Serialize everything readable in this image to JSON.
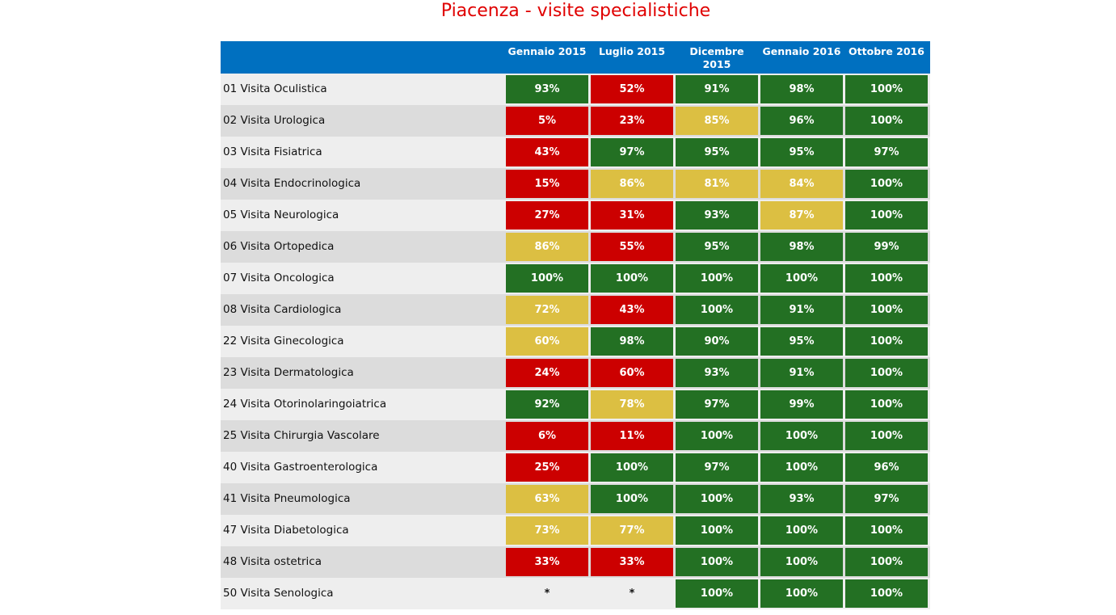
{
  "chart_data": {
    "type": "table",
    "title": "Piacenza - visite specialistiche",
    "columns": [
      "Gennaio 2015",
      "Luglio 2015",
      "Dicembre 2015",
      "Gennaio 2016",
      "Ottobre 2016"
    ],
    "rows": [
      {
        "label": "01 Visita Oculistica",
        "values": [
          "93%",
          "52%",
          "91%",
          "98%",
          "100%"
        ],
        "status": [
          "green",
          "red",
          "green",
          "green",
          "green"
        ]
      },
      {
        "label": "02 Visita Urologica",
        "values": [
          "5%",
          "23%",
          "85%",
          "96%",
          "100%"
        ],
        "status": [
          "red",
          "red",
          "yellow",
          "green",
          "green"
        ]
      },
      {
        "label": "03 Visita Fisiatrica",
        "values": [
          "43%",
          "97%",
          "95%",
          "95%",
          "97%"
        ],
        "status": [
          "red",
          "green",
          "green",
          "green",
          "green"
        ]
      },
      {
        "label": "04 Visita Endocrinologica",
        "values": [
          "15%",
          "86%",
          "81%",
          "84%",
          "100%"
        ],
        "status": [
          "red",
          "yellow",
          "yellow",
          "yellow",
          "green"
        ]
      },
      {
        "label": "05 Visita Neurologica",
        "values": [
          "27%",
          "31%",
          "93%",
          "87%",
          "100%"
        ],
        "status": [
          "red",
          "red",
          "green",
          "yellow",
          "green"
        ]
      },
      {
        "label": "06 Visita Ortopedica",
        "values": [
          "86%",
          "55%",
          "95%",
          "98%",
          "99%"
        ],
        "status": [
          "yellow",
          "red",
          "green",
          "green",
          "green"
        ]
      },
      {
        "label": "07 Visita Oncologica",
        "values": [
          "100%",
          "100%",
          "100%",
          "100%",
          "100%"
        ],
        "status": [
          "green",
          "green",
          "green",
          "green",
          "green"
        ]
      },
      {
        "label": "08 Visita Cardiologica",
        "values": [
          "72%",
          "43%",
          "100%",
          "91%",
          "100%"
        ],
        "status": [
          "yellow",
          "red",
          "green",
          "green",
          "green"
        ]
      },
      {
        "label": "22 Visita Ginecologica",
        "values": [
          "60%",
          "98%",
          "90%",
          "95%",
          "100%"
        ],
        "status": [
          "yellow",
          "green",
          "green",
          "green",
          "green"
        ]
      },
      {
        "label": "23 Visita Dermatologica",
        "values": [
          "24%",
          "60%",
          "93%",
          "91%",
          "100%"
        ],
        "status": [
          "red",
          "red",
          "green",
          "green",
          "green"
        ]
      },
      {
        "label": "24 Visita Otorinolaringoiatrica",
        "values": [
          "92%",
          "78%",
          "97%",
          "99%",
          "100%"
        ],
        "status": [
          "green",
          "yellow",
          "green",
          "green",
          "green"
        ]
      },
      {
        "label": "25 Visita Chirurgia Vascolare",
        "values": [
          "6%",
          "11%",
          "100%",
          "100%",
          "100%"
        ],
        "status": [
          "red",
          "red",
          "green",
          "green",
          "green"
        ]
      },
      {
        "label": "40 Visita Gastroenterologica",
        "values": [
          "25%",
          "100%",
          "97%",
          "100%",
          "96%"
        ],
        "status": [
          "red",
          "green",
          "green",
          "green",
          "green"
        ]
      },
      {
        "label": "41 Visita Pneumologica",
        "values": [
          "63%",
          "100%",
          "100%",
          "93%",
          "97%"
        ],
        "status": [
          "yellow",
          "green",
          "green",
          "green",
          "green"
        ]
      },
      {
        "label": "47 Visita Diabetologica",
        "values": [
          "73%",
          "77%",
          "100%",
          "100%",
          "100%"
        ],
        "status": [
          "yellow",
          "yellow",
          "green",
          "green",
          "green"
        ]
      },
      {
        "label": "48 Visita ostetrica",
        "values": [
          "33%",
          "33%",
          "100%",
          "100%",
          "100%"
        ],
        "status": [
          "red",
          "red",
          "green",
          "green",
          "green"
        ]
      },
      {
        "label": "50 Visita Senologica",
        "values": [
          "*",
          "*",
          "100%",
          "100%",
          "100%"
        ],
        "status": [
          "none",
          "none",
          "green",
          "green",
          "green"
        ]
      }
    ],
    "colors": {
      "green": "#237023",
      "red": "#cc0000",
      "yellow": "#dcbf42",
      "header": "#0070c0",
      "title": "#e00000"
    }
  }
}
